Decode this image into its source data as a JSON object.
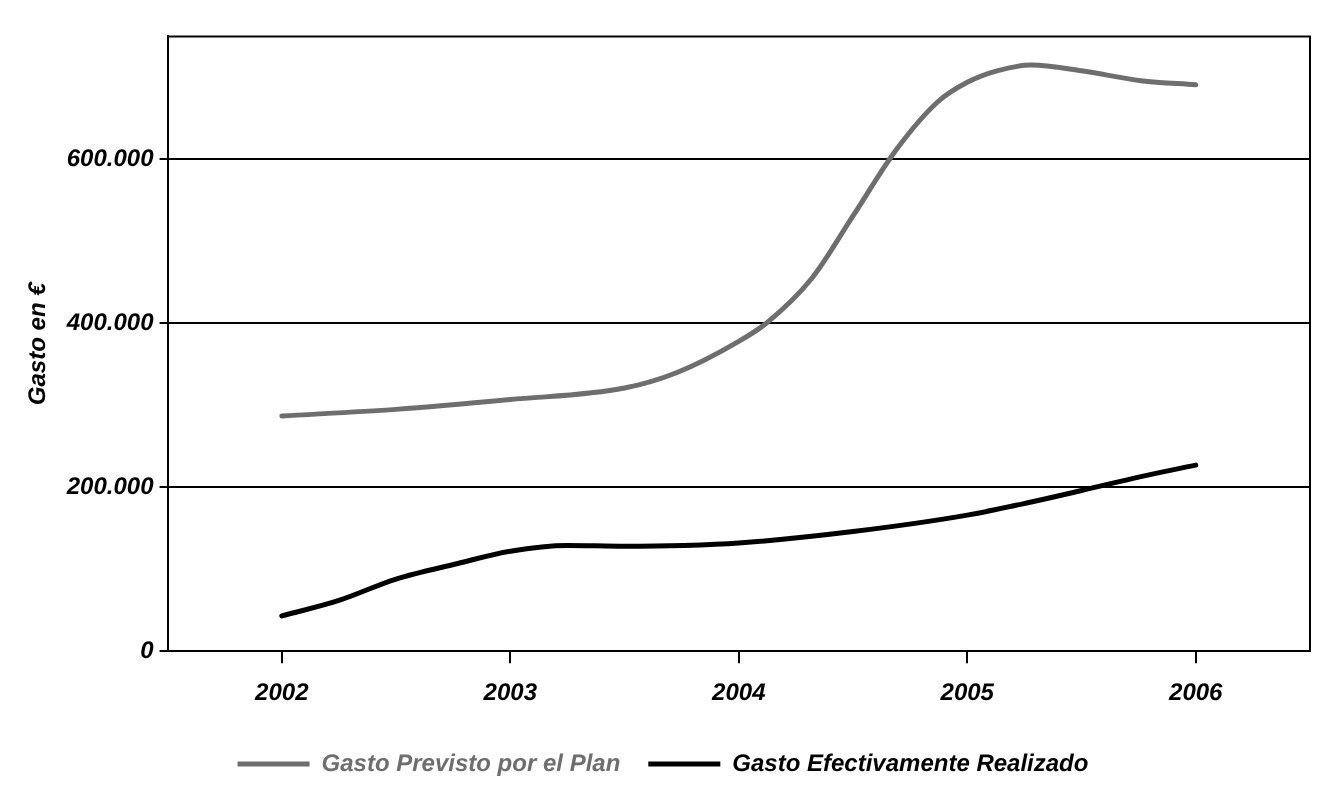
{
  "chart_data": {
    "type": "line",
    "ylabel": "Gasto en €",
    "xlim": [
      2001.5,
      2006.5
    ],
    "xticks": [
      2002,
      2003,
      2004,
      2005,
      2006
    ],
    "ylim": [
      0,
      750000
    ],
    "yticks": [
      {
        "value": 0,
        "label": "0"
      },
      {
        "value": 200000,
        "label": "200.000"
      },
      {
        "value": 400000,
        "label": "400.000"
      },
      {
        "value": 600000,
        "label": "600.000"
      }
    ],
    "grid": "y",
    "legend": "bottom",
    "marker": "none",
    "line_style": "solid",
    "series": [
      {
        "name": "Gasto Previsto por el Plan",
        "color": "#6e6e6e",
        "x": [
          2002,
          2002.5,
          2003,
          2003.5,
          2003.73,
          2004,
          2004.12,
          2004.32,
          2004.5,
          2004.69,
          2004.87,
          2005,
          2005.13,
          2005.28,
          2005.5,
          2005.76,
          2006
        ],
        "values": [
          287000,
          295000,
          307000,
          321000,
          340000,
          378000,
          400000,
          455000,
          531000,
          612000,
          670000,
          694000,
          708000,
          715000,
          708000,
          696000,
          691000
        ]
      },
      {
        "name": "Gasto Efectivamente Realizado",
        "color": "#000000",
        "x": [
          2002,
          2002.25,
          2002.5,
          2002.77,
          2003,
          2003.25,
          2003.5,
          2003.76,
          2004,
          2004.5,
          2005,
          2005.28,
          2005.5,
          2005.76,
          2006
        ],
        "values": [
          43000,
          62000,
          88000,
          107000,
          122000,
          129000,
          128000,
          129000,
          132000,
          146000,
          166000,
          182000,
          196000,
          213000,
          227000
        ]
      }
    ]
  }
}
